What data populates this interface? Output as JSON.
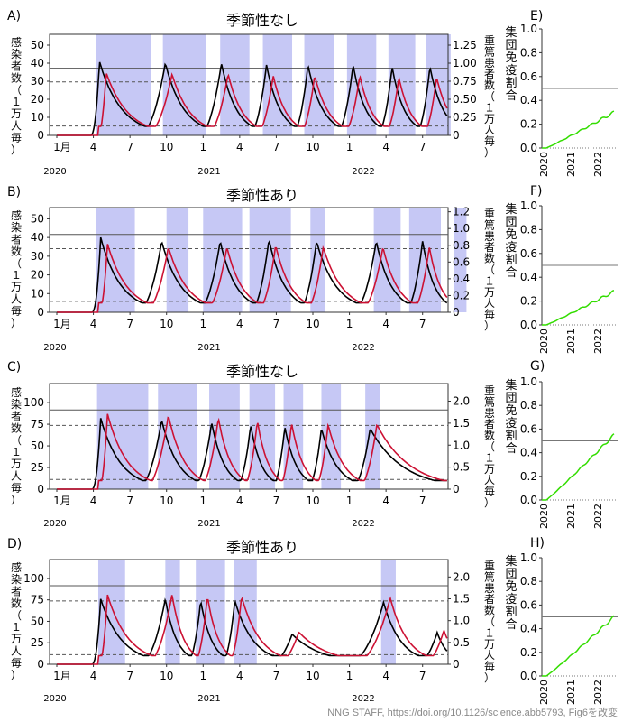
{
  "credit": "NNG STAFF, https://doi.org/10.1126/science.abb5793, Fig6を改変",
  "colors": {
    "shade": "#c6c8f5",
    "infected": "#000000",
    "critical": "#cc1133",
    "immunity": "#33dd00"
  },
  "left_axis_label": [
    "感",
    "染",
    "者",
    "数",
    "（",
    "１",
    "万",
    "人",
    "毎",
    "）"
  ],
  "right_axis_label": [
    "重",
    "篤",
    "患",
    "者",
    "数",
    "（",
    "１",
    "万",
    "人",
    "毎",
    "）"
  ],
  "immunity_axis_label": [
    "集",
    "団",
    "免",
    "疫",
    "割",
    "合"
  ],
  "month_ticks": [
    "1月",
    "4",
    "7",
    "10",
    "1",
    "4",
    "7",
    "10",
    "1",
    "4",
    "7"
  ],
  "year_ticks": [
    "2020",
    "2021",
    "2022"
  ],
  "chart_data": [
    {
      "panel": "A",
      "title": "季節性なし",
      "type": "line",
      "ylim_left": [
        0,
        56
      ],
      "left_ticks": [
        0,
        10,
        20,
        30,
        40,
        50
      ],
      "ylim_right": [
        0,
        1.4
      ],
      "right_ticks": [
        "0",
        "0.25",
        "0.50",
        "0.75",
        "1.00",
        "1.25"
      ],
      "capacity_line_critical": 0.93,
      "dashed_lines_critical": [
        0.74,
        0.13
      ],
      "distancing_periods_months": [
        [
          3.2,
          7.7
        ],
        [
          8.7,
          12.2
        ],
        [
          13.4,
          15.8
        ],
        [
          16.9,
          19.3
        ],
        [
          20.3,
          22.7
        ],
        [
          23.8,
          26.2
        ],
        [
          27.2,
          29.4
        ],
        [
          30.3,
          32.3
        ]
      ],
      "infection_peaks": [
        {
          "month": 3.5,
          "value": 41
        },
        {
          "month": 8.9,
          "value": 40
        },
        {
          "month": 13.5,
          "value": 40
        },
        {
          "month": 17.2,
          "value": 39
        },
        {
          "month": 20.6,
          "value": 39
        },
        {
          "month": 24.3,
          "value": 39
        },
        {
          "month": 27.5,
          "value": 38
        },
        {
          "month": 30.6,
          "value": 38
        }
      ],
      "infection_troughs": 5,
      "critical_peak": 0.87,
      "critical_trough": 0.16
    },
    {
      "panel": "B",
      "title": "季節性あり",
      "type": "line",
      "ylim_left": [
        0,
        56
      ],
      "left_ticks": [
        0,
        10,
        20,
        30,
        40,
        50
      ],
      "ylim_right": [
        0,
        1.25
      ],
      "right_ticks": [
        "0",
        "0.2",
        "0.4",
        "0.6",
        "0.8",
        "1.0",
        "1.2"
      ],
      "capacity_line_critical": 0.93,
      "dashed_lines_critical": [
        0.76,
        0.13
      ],
      "distancing_periods_months": [
        [
          3.2,
          6.4
        ],
        [
          9.0,
          10.8
        ],
        [
          12.0,
          15.2
        ],
        [
          15.8,
          19.2
        ],
        [
          20.8,
          22.0
        ],
        [
          26.0,
          28.2
        ],
        [
          28.9,
          31.5
        ],
        [
          32.6,
          33.6
        ]
      ],
      "infection_peaks": [
        {
          "month": 3.6,
          "value": 40
        },
        {
          "month": 8.6,
          "value": 38
        },
        {
          "month": 13.4,
          "value": 38
        },
        {
          "month": 17.4,
          "value": 39
        },
        {
          "month": 21.3,
          "value": 38
        },
        {
          "month": 26.2,
          "value": 38
        },
        {
          "month": 30.0,
          "value": 38
        },
        {
          "month": 33.0,
          "value": 38
        }
      ],
      "infection_troughs": 5,
      "critical_peak": 0.82,
      "critical_trough": 0.16
    },
    {
      "panel": "C",
      "title": "季節性なし",
      "type": "line",
      "ylim_left": [
        0,
        122
      ],
      "left_ticks": [
        0,
        25,
        50,
        75,
        100
      ],
      "ylim_right": [
        0,
        2.4
      ],
      "right_ticks": [
        "0",
        "0.5",
        "1.0",
        "1.5",
        "2.0"
      ],
      "capacity_line_critical": 1.8,
      "dashed_lines_critical": [
        1.45,
        0.22
      ],
      "distancing_periods_months": [
        [
          3.3,
          7.5
        ],
        [
          8.3,
          11.5
        ],
        [
          12.5,
          15.0
        ],
        [
          15.8,
          17.9
        ],
        [
          18.6,
          20.2
        ],
        [
          21.7,
          23.3
        ],
        [
          25.3,
          26.5
        ]
      ],
      "infection_peaks": [
        {
          "month": 3.6,
          "value": 82
        },
        {
          "month": 8.6,
          "value": 80
        },
        {
          "month": 12.7,
          "value": 77
        },
        {
          "month": 15.9,
          "value": 74
        },
        {
          "month": 18.7,
          "value": 72
        },
        {
          "month": 21.7,
          "value": 70
        },
        {
          "month": 25.7,
          "value": 70
        }
      ],
      "infection_troughs": 10,
      "critical_peak": 1.72,
      "critical_trough": 0.24
    },
    {
      "panel": "D",
      "title": "季節性あり",
      "type": "line",
      "ylim_left": [
        0,
        122
      ],
      "left_ticks": [
        0,
        25,
        50,
        75,
        100
      ],
      "ylim_right": [
        0,
        2.4
      ],
      "right_ticks": [
        "0",
        "0.5",
        "1.0",
        "1.5",
        "2.0"
      ],
      "capacity_line_critical": 1.8,
      "dashed_lines_critical": [
        1.45,
        0.22
      ],
      "distancing_periods_months": [
        [
          3.4,
          5.6
        ],
        [
          8.9,
          10.1
        ],
        [
          11.4,
          13.8
        ],
        [
          14.5,
          16.4
        ],
        [
          26.6,
          27.8
        ]
      ],
      "infection_peaks": [
        {
          "month": 3.6,
          "value": 76
        },
        {
          "month": 8.9,
          "value": 76
        },
        {
          "month": 11.8,
          "value": 74
        },
        {
          "month": 14.6,
          "value": 74
        },
        {
          "month": 19.3,
          "value": 35
        },
        {
          "month": 26.8,
          "value": 72
        },
        {
          "month": 31.2,
          "value": 37
        }
      ],
      "infection_troughs": 10,
      "critical_peak": 1.6,
      "critical_trough": 0.22
    },
    {
      "panel": "E",
      "type": "line",
      "ylim": [
        0,
        1.0
      ],
      "yticks": [
        "0.0",
        "0.2",
        "0.4",
        "0.6",
        "0.8",
        "1.0"
      ],
      "reference_line": 0.5,
      "end_value": 0.3,
      "series_name": "集団免疫割合"
    },
    {
      "panel": "F",
      "type": "line",
      "ylim": [
        0,
        1.0
      ],
      "yticks": [
        "0.0",
        "0.2",
        "0.4",
        "0.6",
        "0.8",
        "1.0"
      ],
      "reference_line": 0.5,
      "end_value": 0.28,
      "series_name": "集団免疫割合"
    },
    {
      "panel": "G",
      "type": "line",
      "ylim": [
        0,
        1.0
      ],
      "yticks": [
        "0.0",
        "0.2",
        "0.4",
        "0.6",
        "0.8",
        "1.0"
      ],
      "reference_line": 0.5,
      "end_value": 0.55,
      "series_name": "集団免疫割合"
    },
    {
      "panel": "H",
      "type": "line",
      "ylim": [
        0,
        1.0
      ],
      "yticks": [
        "0.0",
        "0.2",
        "0.4",
        "0.6",
        "0.8",
        "1.0"
      ],
      "reference_line": 0.5,
      "end_value": 0.5,
      "series_name": "集団免疫割合"
    }
  ]
}
